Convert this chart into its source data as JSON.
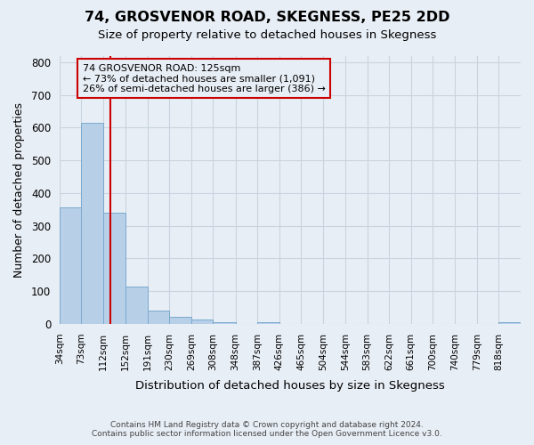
{
  "title": "74, GROSVENOR ROAD, SKEGNESS, PE25 2DD",
  "subtitle": "Size of property relative to detached houses in Skegness",
  "xlabel": "Distribution of detached houses by size in Skegness",
  "ylabel": "Number of detached properties",
  "footer_line1": "Contains HM Land Registry data © Crown copyright and database right 2024.",
  "footer_line2": "Contains public sector information licensed under the Open Government Licence v3.0.",
  "bar_edges": [
    34,
    73,
    112,
    152,
    191,
    230,
    269,
    308,
    348,
    387,
    426,
    465,
    504,
    544,
    583,
    622,
    661,
    700,
    740,
    779,
    818
  ],
  "bar_heights": [
    355,
    614,
    340,
    113,
    40,
    23,
    15,
    6,
    0,
    6,
    0,
    0,
    0,
    0,
    0,
    0,
    0,
    0,
    0,
    0,
    6
  ],
  "bar_color": "#b8cfe8",
  "bar_edge_color": "#7aaad0",
  "grid_color": "#c8d4e0",
  "background_color": "#e8eef5",
  "vline_x": 125,
  "vline_color": "#cc0000",
  "annotation_text": "74 GROSVENOR ROAD: 125sqm\n← 73% of detached houses are smaller (1,091)\n26% of semi-detached houses are larger (386) →",
  "annotation_box_color": "#cc0000",
  "ylim": [
    0,
    820
  ],
  "yticks": [
    0,
    100,
    200,
    300,
    400,
    500,
    600,
    700,
    800
  ],
  "tick_labels": [
    "34sqm",
    "73sqm",
    "112sqm",
    "152sqm",
    "191sqm",
    "230sqm",
    "269sqm",
    "308sqm",
    "348sqm",
    "387sqm",
    "426sqm",
    "465sqm",
    "504sqm",
    "544sqm",
    "583sqm",
    "622sqm",
    "661sqm",
    "700sqm",
    "740sqm",
    "779sqm",
    "818sqm"
  ]
}
